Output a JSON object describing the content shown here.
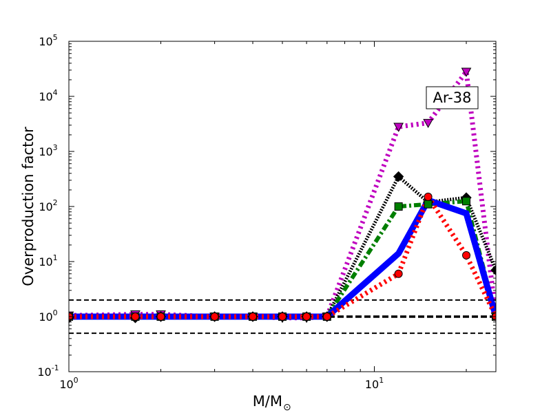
{
  "chart_data": {
    "type": "line",
    "title": "",
    "xlabel": "M/M",
    "xlabel_sub": "⊙",
    "ylabel": "Overproduction factor",
    "xscale": "log",
    "yscale": "log",
    "xlim": [
      1,
      25
    ],
    "ylim": [
      0.1,
      100000
    ],
    "xticks": [
      {
        "value": 1,
        "base": "10",
        "exp": "0"
      },
      {
        "value": 10,
        "base": "10",
        "exp": "1"
      }
    ],
    "yticks": [
      {
        "value": 0.1,
        "base": "10",
        "exp": "-1"
      },
      {
        "value": 1,
        "base": "10",
        "exp": "0"
      },
      {
        "value": 10,
        "base": "10",
        "exp": "1"
      },
      {
        "value": 100,
        "base": "10",
        "exp": "2"
      },
      {
        "value": 1000,
        "base": "10",
        "exp": "3"
      },
      {
        "value": 10000,
        "base": "10",
        "exp": "4"
      },
      {
        "value": 100000,
        "base": "10",
        "exp": "5"
      }
    ],
    "annotation": "Ar-38",
    "reference_lines": [
      {
        "y": 2,
        "style": "dashed"
      },
      {
        "y": 1,
        "style": "dashed-thick"
      },
      {
        "y": 0.5,
        "style": "dashed"
      }
    ],
    "grid": false,
    "legend": "none",
    "series": [
      {
        "color": "#bf00bf",
        "linestyle": "dotted",
        "marker": "triangle-down",
        "x": [
          1,
          1.65,
          2,
          3,
          4,
          5,
          6,
          7,
          12,
          15,
          20,
          25
        ],
        "y": [
          1.05,
          1.1,
          1.1,
          1.0,
          1.0,
          0.95,
          0.95,
          1.0,
          2800,
          3300,
          28000,
          1.0
        ]
      },
      {
        "color": "#000000",
        "linestyle": "dense-dotted",
        "marker": "diamond",
        "x": [
          1,
          1.65,
          2,
          3,
          4,
          5,
          6,
          7,
          12,
          15,
          20,
          25
        ],
        "y": [
          0.95,
          0.95,
          1.0,
          1.0,
          1.0,
          1.0,
          1.0,
          1.0,
          350,
          120,
          145,
          7
        ]
      },
      {
        "color": "#007f00",
        "linestyle": "dash-dot",
        "marker": "square",
        "x": [
          1,
          1.65,
          2,
          3,
          4,
          5,
          6,
          7,
          12,
          15,
          20,
          25
        ],
        "y": [
          1.0,
          1.0,
          1.0,
          1.0,
          1.0,
          1.0,
          1.0,
          1.0,
          100,
          110,
          125,
          1.0
        ]
      },
      {
        "color": "#0000ff",
        "linestyle": "solid",
        "marker": "none",
        "x": [
          1,
          1.65,
          2,
          3,
          4,
          5,
          6,
          7,
          12,
          15,
          20,
          25
        ],
        "y": [
          1.0,
          1.0,
          1.0,
          1.0,
          1.0,
          1.0,
          1.0,
          1.0,
          14,
          130,
          75,
          1.0
        ]
      },
      {
        "color": "#ff0000",
        "linestyle": "dotted",
        "marker": "circle",
        "x": [
          1,
          1.65,
          2,
          3,
          4,
          5,
          6,
          7,
          12,
          15,
          20,
          25
        ],
        "y": [
          1.0,
          1.0,
          1.0,
          1.0,
          1.0,
          1.0,
          1.0,
          1.0,
          6,
          150,
          13,
          1.0
        ]
      }
    ]
  }
}
